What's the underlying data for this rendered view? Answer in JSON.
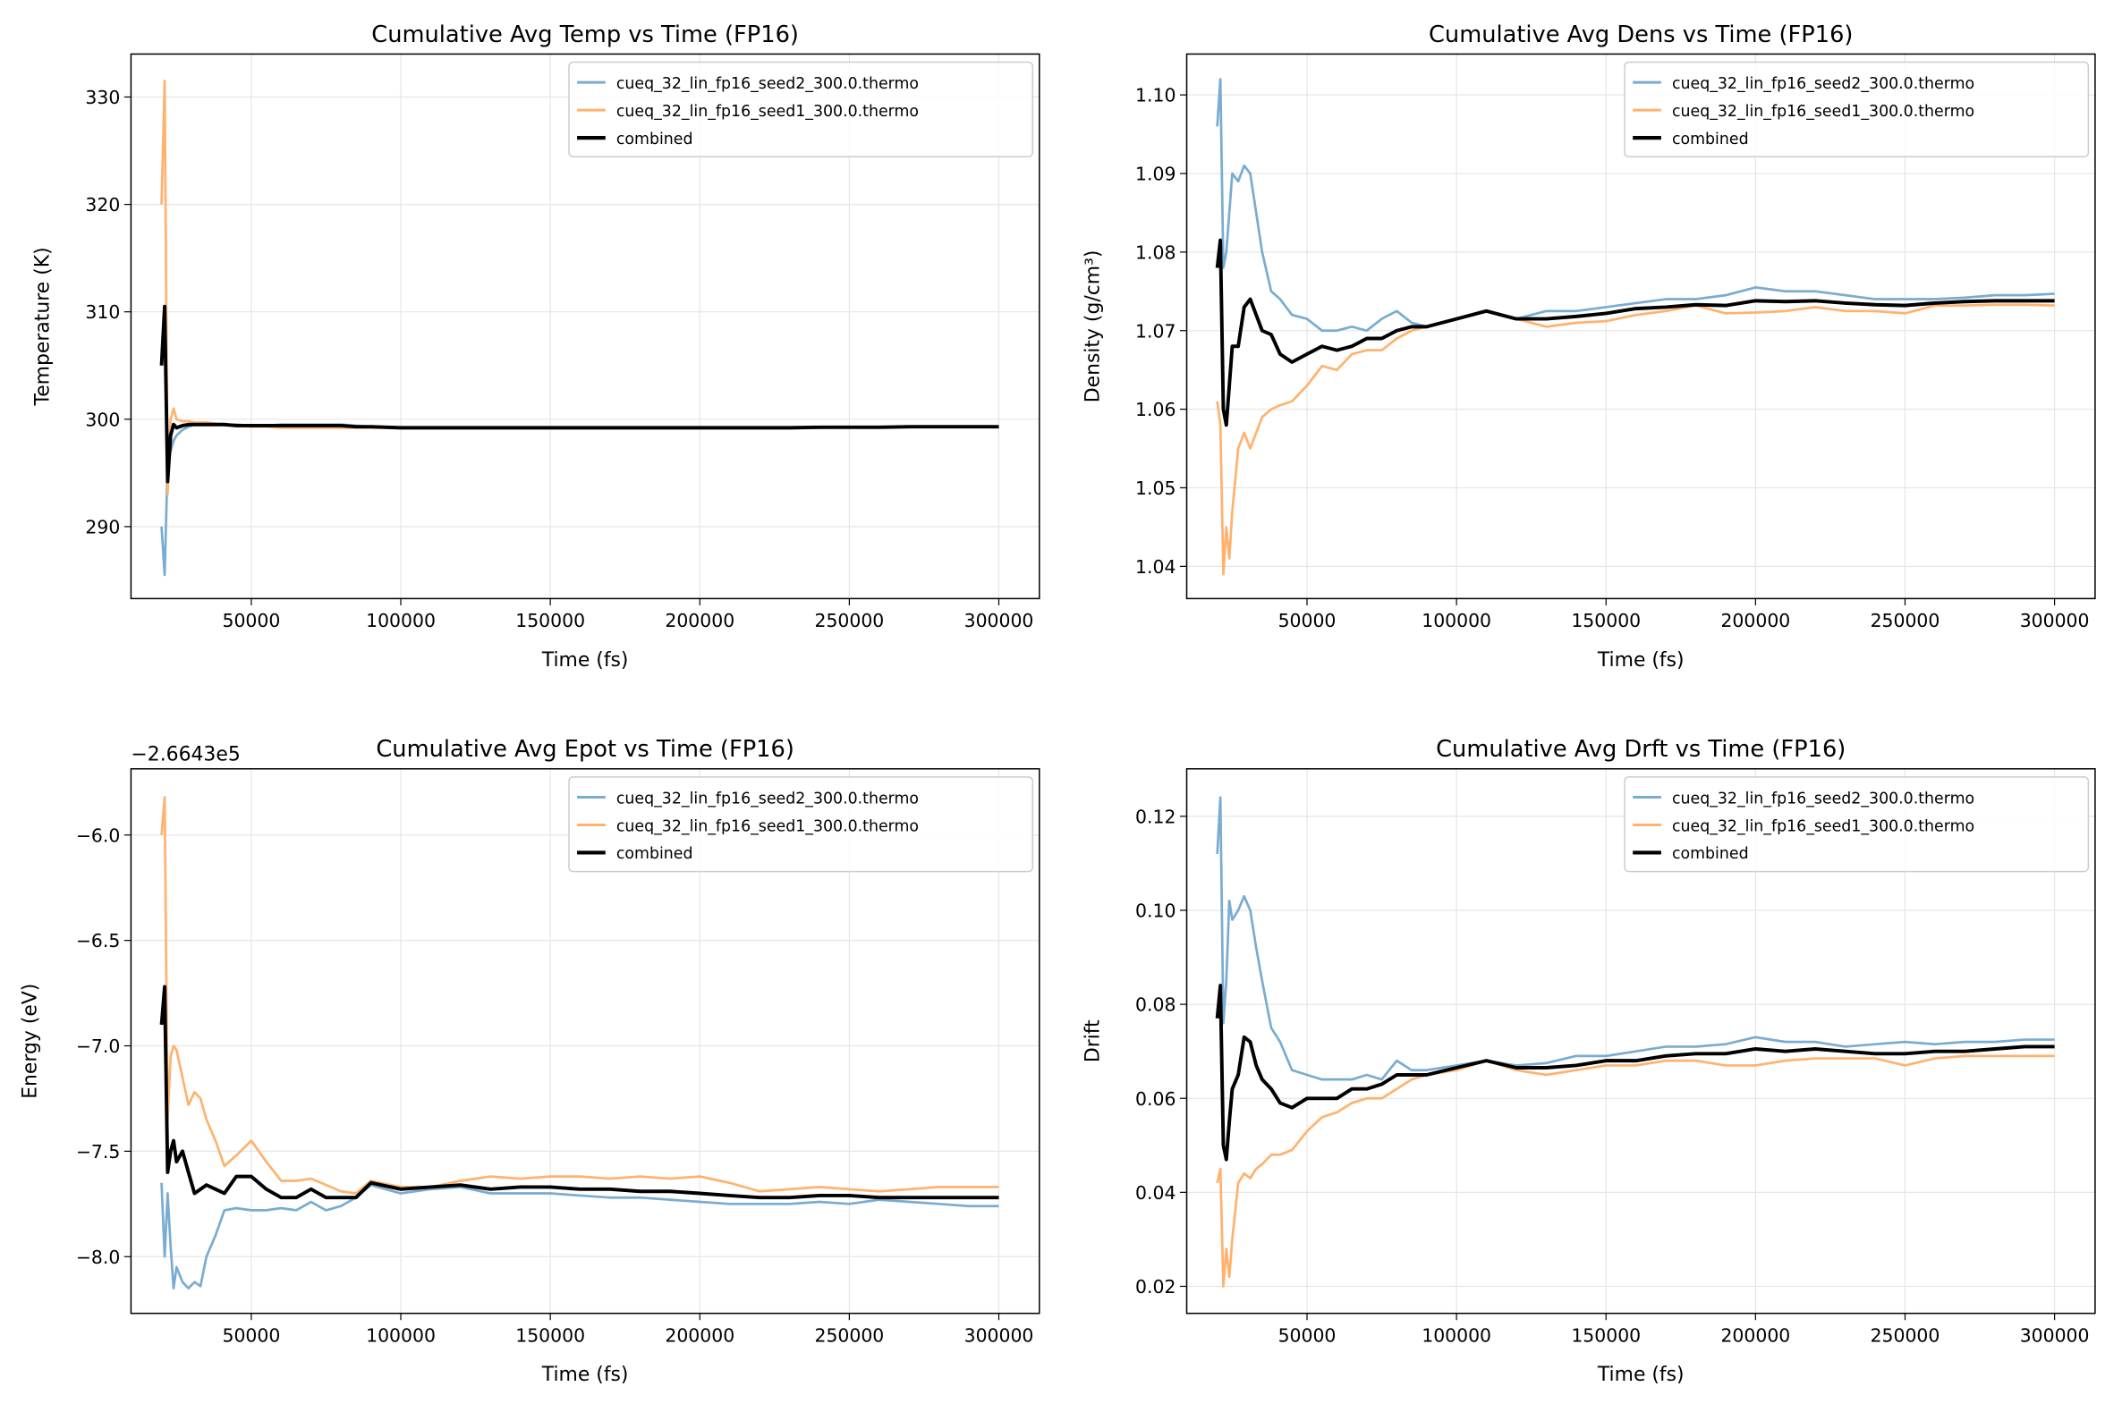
{
  "colors": {
    "seed2": "#79acd2",
    "seed1": "#ffb26e",
    "combined": "#000000"
  },
  "chart_data": [
    {
      "type": "line",
      "title": "Cumulative Avg Temp vs Time (FP16)",
      "xlabel": "Time (fs)",
      "ylabel": "Temperature (K)",
      "offset_text": "",
      "xlim": [
        9765,
        313560
      ],
      "ylim": [
        283.3,
        334.0
      ],
      "xticks": [
        50000,
        100000,
        150000,
        200000,
        250000,
        300000
      ],
      "xtick_labels": [
        "50000",
        "100000",
        "150000",
        "200000",
        "250000",
        "300000"
      ],
      "yticks": [
        290,
        300,
        310,
        320,
        330
      ],
      "ytick_labels": [
        "290",
        "300",
        "310",
        "320",
        "330"
      ],
      "grid": true,
      "legend": "top-right",
      "x": [
        20000,
        21000,
        22000,
        23000,
        24000,
        25000,
        27000,
        29000,
        31000,
        33000,
        35000,
        38000,
        41000,
        45000,
        50000,
        55000,
        60000,
        65000,
        70000,
        75000,
        80000,
        85000,
        90000,
        100000,
        110000,
        120000,
        130000,
        140000,
        150000,
        160000,
        170000,
        180000,
        190000,
        200000,
        210000,
        220000,
        230000,
        240000,
        250000,
        260000,
        270000,
        280000,
        290000,
        300000
      ],
      "series": [
        {
          "name": "cueq_32_lin_fp16_seed2_300.0.thermo",
          "color_key": "seed2",
          "values": [
            290,
            285.5,
            296,
            297,
            298,
            298.5,
            299,
            299.3,
            299.5,
            299.5,
            299.5,
            299.5,
            299.5,
            299.5,
            299.4,
            299.4,
            299.5,
            299.5,
            299.5,
            299.5,
            299.5,
            299.4,
            299.3,
            299.2,
            299.2,
            299.2,
            299.2,
            299.2,
            299.2,
            299.2,
            299.2,
            299.2,
            299.2,
            299.2,
            299.2,
            299.2,
            299.2,
            299.25,
            299.25,
            299.25,
            299.3,
            299.3,
            299.3,
            299.3
          ]
        },
        {
          "name": "cueq_32_lin_fp16_seed1_300.0.thermo",
          "color_key": "seed1",
          "values": [
            320,
            331.5,
            293,
            300,
            301,
            300,
            299.8,
            299.8,
            299.7,
            299.7,
            299.7,
            299.6,
            299.5,
            299.4,
            299.3,
            299.3,
            299.2,
            299.2,
            299.2,
            299.2,
            299.2,
            299.2,
            299.2,
            299.2,
            299.2,
            299.2,
            299.2,
            299.2,
            299.2,
            299.2,
            299.2,
            299.2,
            299.2,
            299.2,
            299.2,
            299.2,
            299.2,
            299.2,
            299.25,
            299.25,
            299.3,
            299.3,
            299.3,
            299.3
          ]
        },
        {
          "name": "combined",
          "color_key": "combined",
          "values": [
            305,
            310.5,
            294.2,
            298.5,
            299.5,
            299.2,
            299.4,
            299.5,
            299.5,
            299.5,
            299.5,
            299.5,
            299.5,
            299.4,
            299.4,
            299.4,
            299.4,
            299.4,
            299.4,
            299.4,
            299.4,
            299.3,
            299.3,
            299.2,
            299.2,
            299.2,
            299.2,
            299.2,
            299.2,
            299.2,
            299.2,
            299.2,
            299.2,
            299.2,
            299.2,
            299.2,
            299.2,
            299.25,
            299.25,
            299.25,
            299.3,
            299.3,
            299.3,
            299.3
          ]
        }
      ]
    },
    {
      "type": "line",
      "title": "Cumulative Avg Dens vs Time (FP16)",
      "xlabel": "Time (fs)",
      "ylabel": "Density (g/cm³)",
      "offset_text": "",
      "xlim": [
        9765,
        313560
      ],
      "ylim": [
        1.0359,
        1.1052
      ],
      "xticks": [
        50000,
        100000,
        150000,
        200000,
        250000,
        300000
      ],
      "xtick_labels": [
        "50000",
        "100000",
        "150000",
        "200000",
        "250000",
        "300000"
      ],
      "yticks": [
        1.04,
        1.05,
        1.06,
        1.07,
        1.08,
        1.09,
        1.1
      ],
      "ytick_labels": [
        "1.04",
        "1.05",
        "1.06",
        "1.07",
        "1.08",
        "1.09",
        "1.10"
      ],
      "grid": true,
      "legend": "top-right",
      "x": [
        20000,
        21000,
        22000,
        23000,
        24000,
        25000,
        27000,
        29000,
        31000,
        33000,
        35000,
        38000,
        41000,
        45000,
        50000,
        55000,
        60000,
        65000,
        70000,
        75000,
        80000,
        85000,
        90000,
        100000,
        110000,
        120000,
        130000,
        140000,
        150000,
        160000,
        170000,
        180000,
        190000,
        200000,
        210000,
        220000,
        230000,
        240000,
        250000,
        260000,
        270000,
        280000,
        290000,
        300000
      ],
      "series": [
        {
          "name": "cueq_32_lin_fp16_seed2_300.0.thermo",
          "color_key": "seed2",
          "values": [
            1.096,
            1.102,
            1.078,
            1.08,
            1.085,
            1.09,
            1.089,
            1.091,
            1.09,
            1.085,
            1.08,
            1.075,
            1.074,
            1.072,
            1.0715,
            1.07,
            1.07,
            1.0705,
            1.07,
            1.0715,
            1.0725,
            1.071,
            1.0705,
            1.0715,
            1.0725,
            1.0715,
            1.0725,
            1.0725,
            1.073,
            1.0735,
            1.074,
            1.074,
            1.0745,
            1.0755,
            1.075,
            1.075,
            1.0745,
            1.074,
            1.074,
            1.074,
            1.0742,
            1.0745,
            1.0745,
            1.0747
          ]
        },
        {
          "name": "cueq_32_lin_fp16_seed1_300.0.thermo",
          "color_key": "seed1",
          "values": [
            1.061,
            1.058,
            1.039,
            1.045,
            1.041,
            1.047,
            1.055,
            1.057,
            1.055,
            1.057,
            1.059,
            1.06,
            1.0605,
            1.061,
            1.063,
            1.0655,
            1.065,
            1.067,
            1.0675,
            1.0675,
            1.069,
            1.07,
            1.0705,
            1.0715,
            1.0725,
            1.0715,
            1.0705,
            1.071,
            1.0712,
            1.072,
            1.0725,
            1.0732,
            1.0722,
            1.0723,
            1.0725,
            1.073,
            1.0725,
            1.0725,
            1.0722,
            1.0732,
            1.0732,
            1.0733,
            1.0733,
            1.0732
          ]
        },
        {
          "name": "combined",
          "color_key": "combined",
          "values": [
            1.078,
            1.0815,
            1.06,
            1.058,
            1.063,
            1.068,
            1.068,
            1.073,
            1.074,
            1.072,
            1.07,
            1.0695,
            1.067,
            1.066,
            1.067,
            1.068,
            1.0675,
            1.068,
            1.069,
            1.069,
            1.07,
            1.0705,
            1.0705,
            1.0715,
            1.0725,
            1.0715,
            1.0715,
            1.0718,
            1.0722,
            1.0728,
            1.073,
            1.0733,
            1.0732,
            1.0738,
            1.0737,
            1.0738,
            1.0735,
            1.0733,
            1.0732,
            1.0735,
            1.0737,
            1.0738,
            1.0738,
            1.0738
          ]
        }
      ]
    },
    {
      "type": "line",
      "title": "Cumulative Avg Epot vs Time (FP16)",
      "xlabel": "Time (fs)",
      "ylabel": "Energy (eV)",
      "offset_text": "−2.6643e5",
      "xlim": [
        9765,
        313560
      ],
      "ylim": [
        -8.269,
        -5.686
      ],
      "xticks": [
        50000,
        100000,
        150000,
        200000,
        250000,
        300000
      ],
      "xtick_labels": [
        "50000",
        "100000",
        "150000",
        "200000",
        "250000",
        "300000"
      ],
      "yticks": [
        -8.0,
        -7.5,
        -7.0,
        -6.5,
        -6.0
      ],
      "ytick_labels": [
        "−8.0",
        "−7.5",
        "−7.0",
        "−6.5",
        "−6.0"
      ],
      "grid": true,
      "legend": "top-right",
      "x": [
        20000,
        21000,
        22000,
        23000,
        24000,
        25000,
        27000,
        29000,
        31000,
        33000,
        35000,
        38000,
        41000,
        45000,
        50000,
        55000,
        60000,
        65000,
        70000,
        75000,
        80000,
        85000,
        90000,
        100000,
        110000,
        120000,
        130000,
        140000,
        150000,
        160000,
        170000,
        180000,
        190000,
        200000,
        210000,
        220000,
        230000,
        240000,
        250000,
        260000,
        270000,
        280000,
        290000,
        300000
      ],
      "series": [
        {
          "name": "cueq_32_lin_fp16_seed2_300.0.thermo",
          "color_key": "seed2",
          "values": [
            -7.65,
            -8.0,
            -7.7,
            -7.95,
            -8.15,
            -8.05,
            -8.12,
            -8.15,
            -8.12,
            -8.14,
            -8.0,
            -7.9,
            -7.78,
            -7.77,
            -7.78,
            -7.78,
            -7.77,
            -7.78,
            -7.74,
            -7.78,
            -7.76,
            -7.72,
            -7.66,
            -7.7,
            -7.68,
            -7.67,
            -7.7,
            -7.7,
            -7.7,
            -7.71,
            -7.72,
            -7.72,
            -7.73,
            -7.74,
            -7.75,
            -7.75,
            -7.75,
            -7.74,
            -7.75,
            -7.73,
            -7.74,
            -7.75,
            -7.76,
            -7.76
          ]
        },
        {
          "name": "cueq_32_lin_fp16_seed1_300.0.thermo",
          "color_key": "seed1",
          "values": [
            -6.0,
            -5.82,
            -7.35,
            -7.05,
            -7.0,
            -7.02,
            -7.15,
            -7.28,
            -7.22,
            -7.25,
            -7.35,
            -7.45,
            -7.57,
            -7.52,
            -7.45,
            -7.55,
            -7.64,
            -7.64,
            -7.63,
            -7.66,
            -7.69,
            -7.7,
            -7.64,
            -7.67,
            -7.67,
            -7.64,
            -7.62,
            -7.63,
            -7.62,
            -7.62,
            -7.63,
            -7.62,
            -7.63,
            -7.62,
            -7.65,
            -7.69,
            -7.68,
            -7.67,
            -7.68,
            -7.69,
            -7.68,
            -7.67,
            -7.67,
            -7.67
          ]
        },
        {
          "name": "combined",
          "color_key": "combined",
          "values": [
            -6.9,
            -6.72,
            -7.6,
            -7.5,
            -7.45,
            -7.55,
            -7.5,
            -7.6,
            -7.7,
            -7.68,
            -7.66,
            -7.68,
            -7.7,
            -7.62,
            -7.62,
            -7.68,
            -7.72,
            -7.72,
            -7.68,
            -7.72,
            -7.72,
            -7.72,
            -7.65,
            -7.68,
            -7.67,
            -7.66,
            -7.68,
            -7.67,
            -7.67,
            -7.68,
            -7.68,
            -7.69,
            -7.69,
            -7.7,
            -7.71,
            -7.72,
            -7.72,
            -7.71,
            -7.71,
            -7.72,
            -7.72,
            -7.72,
            -7.72,
            -7.72
          ]
        }
      ]
    },
    {
      "type": "line",
      "title": "Cumulative Avg Drft vs Time (FP16)",
      "xlabel": "Time (fs)",
      "ylabel": "Drift",
      "offset_text": "",
      "xlim": [
        9765,
        313560
      ],
      "ylim": [
        0.01425,
        0.1301
      ],
      "xticks": [
        50000,
        100000,
        150000,
        200000,
        250000,
        300000
      ],
      "xtick_labels": [
        "50000",
        "100000",
        "150000",
        "200000",
        "250000",
        "300000"
      ],
      "yticks": [
        0.02,
        0.04,
        0.06,
        0.08,
        0.1,
        0.12
      ],
      "ytick_labels": [
        "0.02",
        "0.04",
        "0.06",
        "0.08",
        "0.10",
        "0.12"
      ],
      "grid": true,
      "legend": "top-right",
      "x": [
        20000,
        21000,
        22000,
        23000,
        24000,
        25000,
        27000,
        29000,
        31000,
        33000,
        35000,
        38000,
        41000,
        45000,
        50000,
        55000,
        60000,
        65000,
        70000,
        75000,
        80000,
        85000,
        90000,
        100000,
        110000,
        120000,
        130000,
        140000,
        150000,
        160000,
        170000,
        180000,
        190000,
        200000,
        210000,
        220000,
        230000,
        240000,
        250000,
        260000,
        270000,
        280000,
        290000,
        300000
      ],
      "series": [
        {
          "name": "cueq_32_lin_fp16_seed2_300.0.thermo",
          "color_key": "seed2",
          "values": [
            0.112,
            0.124,
            0.076,
            0.085,
            0.102,
            0.098,
            0.1,
            0.103,
            0.1,
            0.092,
            0.085,
            0.075,
            0.072,
            0.066,
            0.065,
            0.064,
            0.064,
            0.064,
            0.065,
            0.064,
            0.068,
            0.066,
            0.066,
            0.067,
            0.068,
            0.067,
            0.0675,
            0.069,
            0.069,
            0.07,
            0.071,
            0.071,
            0.0715,
            0.073,
            0.072,
            0.072,
            0.071,
            0.0715,
            0.072,
            0.0715,
            0.072,
            0.072,
            0.0725,
            0.0725
          ]
        },
        {
          "name": "cueq_32_lin_fp16_seed1_300.0.thermo",
          "color_key": "seed1",
          "values": [
            0.042,
            0.045,
            0.02,
            0.028,
            0.022,
            0.03,
            0.042,
            0.044,
            0.043,
            0.045,
            0.046,
            0.048,
            0.048,
            0.049,
            0.053,
            0.056,
            0.057,
            0.059,
            0.06,
            0.06,
            0.062,
            0.064,
            0.065,
            0.066,
            0.068,
            0.066,
            0.065,
            0.066,
            0.067,
            0.067,
            0.068,
            0.068,
            0.067,
            0.067,
            0.068,
            0.0685,
            0.0685,
            0.0685,
            0.067,
            0.0685,
            0.069,
            0.069,
            0.069,
            0.069
          ]
        },
        {
          "name": "combined",
          "color_key": "combined",
          "values": [
            0.077,
            0.084,
            0.05,
            0.047,
            0.055,
            0.062,
            0.065,
            0.073,
            0.072,
            0.067,
            0.064,
            0.062,
            0.059,
            0.058,
            0.06,
            0.06,
            0.06,
            0.062,
            0.062,
            0.063,
            0.065,
            0.065,
            0.065,
            0.0665,
            0.068,
            0.0665,
            0.0665,
            0.067,
            0.068,
            0.068,
            0.069,
            0.0695,
            0.0695,
            0.0705,
            0.07,
            0.0705,
            0.07,
            0.0695,
            0.0695,
            0.07,
            0.07,
            0.0705,
            0.071,
            0.071
          ]
        }
      ]
    }
  ]
}
